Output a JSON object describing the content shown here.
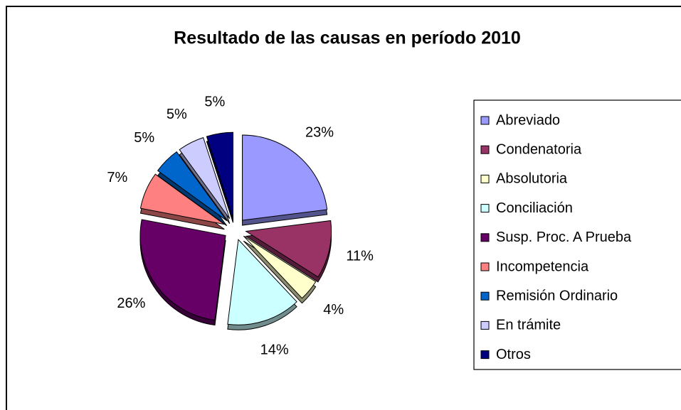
{
  "chart_data": {
    "type": "pie",
    "title": "Resultado de las causas en período 2010",
    "categories": [
      "Abreviado",
      "Condenatoria",
      "Absolutoria",
      "Conciliación",
      "Susp. Proc. A Prueba",
      "Incompetencia",
      "Remisión Ordinario",
      "En trámite",
      "Otros"
    ],
    "values": [
      23,
      11,
      4,
      14,
      26,
      7,
      5,
      5,
      5
    ],
    "value_labels": [
      "23%",
      "11%",
      "4%",
      "14%",
      "26%",
      "7%",
      "5%",
      "5%",
      "5%"
    ],
    "colors": [
      "#9999ff",
      "#993366",
      "#ffffcc",
      "#ccffff",
      "#660066",
      "#ff8080",
      "#0066cc",
      "#ccccff",
      "#000080"
    ],
    "legend": "right"
  }
}
